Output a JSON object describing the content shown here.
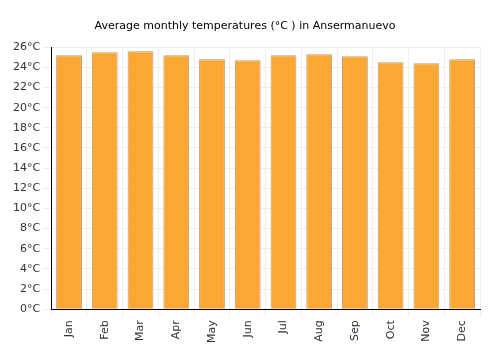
{
  "chart_data": {
    "type": "bar",
    "title": "Average monthly temperatures (°C ) in Ansermanuevo",
    "categories": [
      "Jan",
      "Feb",
      "Mar",
      "Apr",
      "May",
      "Jun",
      "Jul",
      "Aug",
      "Sep",
      "Oct",
      "Nov",
      "Dec"
    ],
    "values": [
      25.2,
      25.5,
      25.6,
      25.2,
      24.8,
      24.7,
      25.2,
      25.3,
      25.1,
      24.5,
      24.4,
      24.8
    ],
    "color": "#fba733",
    "ylim": [
      0,
      26
    ],
    "yticks": [
      {
        "value": 0,
        "label": "0°C"
      },
      {
        "value": 2,
        "label": "2°C"
      },
      {
        "value": 4,
        "label": "4°C"
      },
      {
        "value": 6,
        "label": "6°C"
      },
      {
        "value": 8,
        "label": "8°C"
      },
      {
        "value": 10,
        "label": "10°C"
      },
      {
        "value": 12,
        "label": "12°C"
      },
      {
        "value": 14,
        "label": "14°C"
      },
      {
        "value": 16,
        "label": "16°C"
      },
      {
        "value": 18,
        "label": "18°C"
      },
      {
        "value": 20,
        "label": "20°C"
      },
      {
        "value": 22,
        "label": "22°C"
      },
      {
        "value": 24,
        "label": "24°C"
      },
      {
        "value": 26,
        "label": "26°C"
      }
    ],
    "grid": true
  }
}
